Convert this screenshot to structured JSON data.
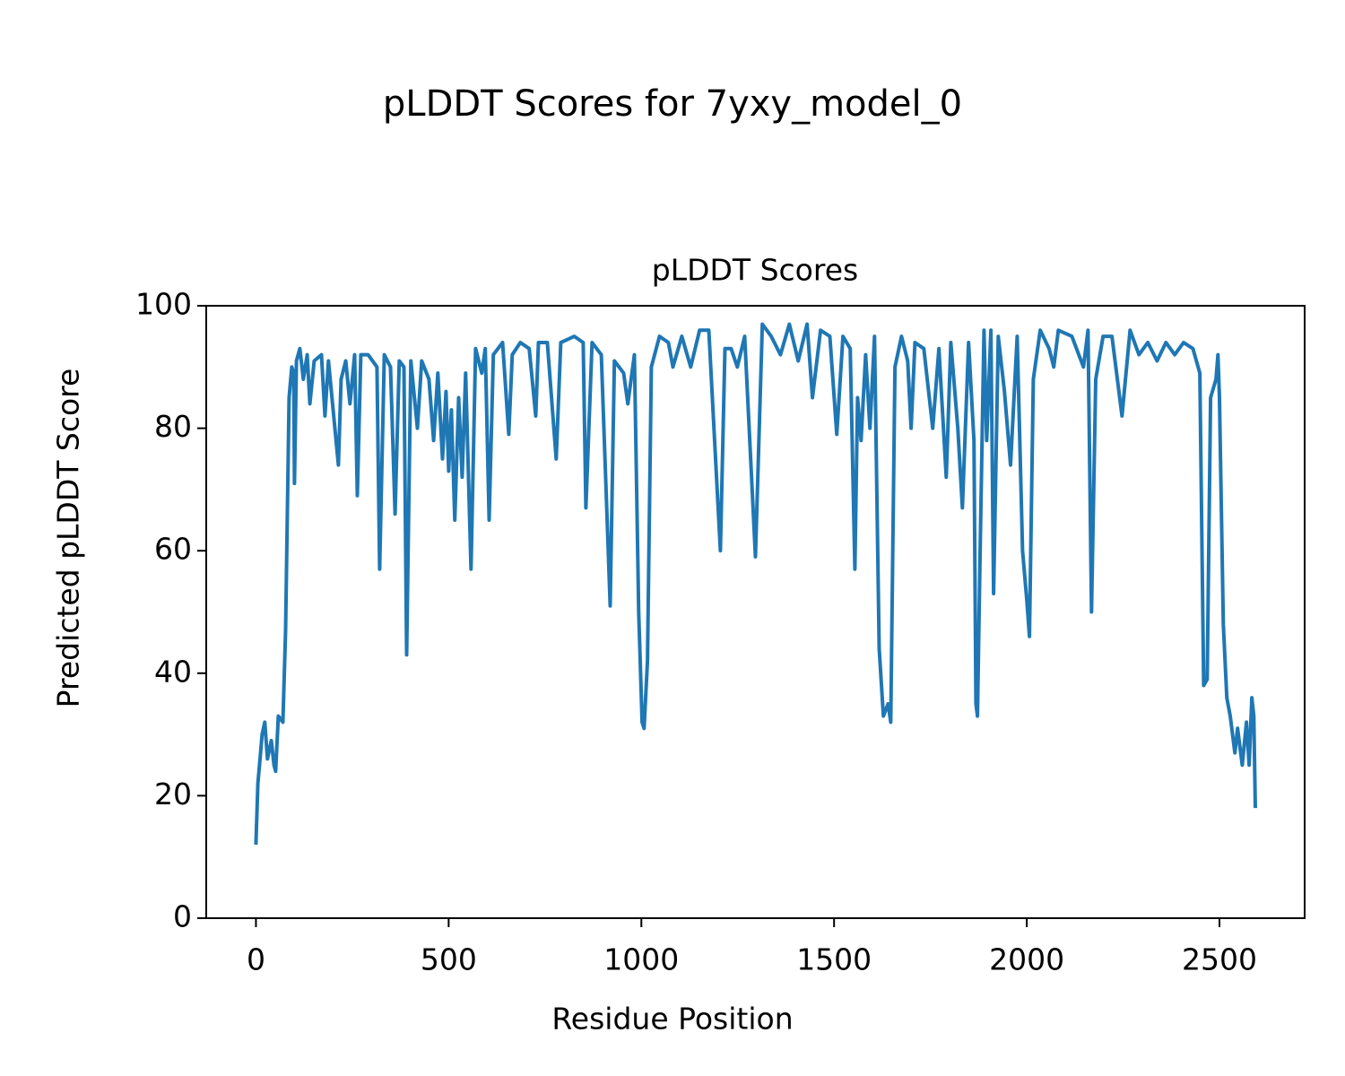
{
  "chart_data": {
    "type": "line",
    "title": "pLDDT Scores for 7yxy_model_0",
    "subtitle": "pLDDT Scores",
    "xlabel": "Residue Position",
    "ylabel": "Predicted pLDDT Score",
    "color": "#1f77b4",
    "xlim": [
      -129,
      2721
    ],
    "ylim": [
      0,
      100
    ],
    "xticks": [
      0,
      500,
      1000,
      1500,
      2000,
      2500
    ],
    "yticks": [
      0,
      20,
      40,
      60,
      80,
      100
    ],
    "grid": false,
    "x": [
      0,
      5,
      12,
      16,
      23,
      30,
      40,
      47,
      51,
      58,
      70,
      77,
      86,
      93,
      98,
      100,
      105,
      114,
      123,
      133,
      140,
      151,
      170,
      179,
      188,
      214,
      221,
      233,
      244,
      256,
      263,
      272,
      291,
      314,
      321,
      333,
      349,
      361,
      372,
      384,
      391,
      402,
      419,
      430,
      449,
      461,
      472,
      484,
      493,
      500,
      507,
      516,
      526,
      535,
      544,
      558,
      570,
      586,
      595,
      605,
      616,
      640,
      656,
      665,
      686,
      709,
      726,
      733,
      756,
      779,
      791,
      826,
      849,
      856,
      872,
      896,
      919,
      930,
      954,
      965,
      982,
      993,
      1002,
      1007,
      1016,
      1026,
      1047,
      1070,
      1082,
      1105,
      1128,
      1151,
      1175,
      1205,
      1217,
      1233,
      1249,
      1268,
      1296,
      1314,
      1337,
      1361,
      1384,
      1407,
      1430,
      1444,
      1465,
      1489,
      1507,
      1523,
      1542,
      1554,
      1561,
      1570,
      1582,
      1593,
      1605,
      1617,
      1628,
      1640,
      1647,
      1658,
      1675,
      1691,
      1700,
      1710,
      1733,
      1756,
      1772,
      1791,
      1803,
      1821,
      1833,
      1849,
      1863,
      1868,
      1872,
      1879,
      1889,
      1896,
      1907,
      1914,
      1926,
      1942,
      1958,
      1975,
      1989,
      2000,
      2007,
      2017,
      2035,
      2058,
      2070,
      2082,
      2117,
      2147,
      2159,
      2168,
      2179,
      2198,
      2221,
      2247,
      2268,
      2291,
      2314,
      2338,
      2361,
      2384,
      2407,
      2431,
      2449,
      2459,
      2468,
      2477,
      2491,
      2496,
      2500,
      2510,
      2519,
      2528,
      2540,
      2547,
      2559,
      2570,
      2577,
      2584,
      2589,
      2593
    ],
    "values": [
      12,
      22,
      27,
      30,
      32,
      26,
      29,
      25,
      24,
      33,
      32,
      47,
      85,
      90,
      89,
      71,
      91,
      93,
      88,
      92,
      84,
      91,
      92,
      82,
      91,
      74,
      88,
      91,
      84,
      92,
      69,
      92,
      92,
      90,
      57,
      92,
      90,
      66,
      91,
      90,
      43,
      91,
      80,
      91,
      88,
      78,
      89,
      75,
      86,
      73,
      83,
      65,
      85,
      72,
      89,
      57,
      93,
      89,
      93,
      65,
      92,
      94,
      79,
      92,
      94,
      93,
      82,
      94,
      94,
      75,
      94,
      95,
      94,
      67,
      94,
      92,
      51,
      91,
      89,
      84,
      92,
      50,
      32,
      31,
      42,
      90,
      95,
      94,
      90,
      95,
      90,
      96,
      96,
      60,
      93,
      93,
      90,
      95,
      59,
      97,
      95,
      92,
      97,
      91,
      97,
      85,
      96,
      95,
      79,
      95,
      93,
      57,
      85,
      78,
      92,
      80,
      95,
      44,
      33,
      35,
      32,
      90,
      95,
      91,
      80,
      94,
      93,
      80,
      93,
      72,
      94,
      80,
      67,
      94,
      78,
      35,
      33,
      60,
      96,
      78,
      96,
      53,
      95,
      86,
      74,
      95,
      60,
      52,
      46,
      88,
      96,
      93,
      90,
      96,
      95,
      90,
      96,
      50,
      88,
      95,
      95,
      82,
      96,
      92,
      94,
      91,
      94,
      92,
      94,
      93,
      89,
      38,
      39,
      85,
      88,
      92,
      85,
      48,
      36,
      33,
      27,
      31,
      25,
      32,
      25,
      36,
      33,
      18
    ]
  }
}
